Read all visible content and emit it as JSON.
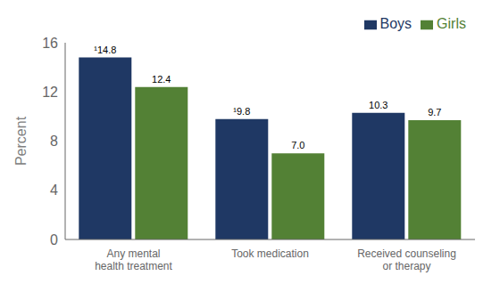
{
  "chart_data": {
    "type": "bar",
    "categories": [
      "Any mental\nhealth treatment",
      "Took medication",
      "Received counseling\nor therapy"
    ],
    "series": [
      {
        "name": "Boys",
        "color": "#1F3864",
        "values": [
          14.8,
          9.8,
          10.3
        ],
        "value_labels": [
          "¹14.8",
          "¹9.8",
          "10.3"
        ]
      },
      {
        "name": "Girls",
        "color": "#538135",
        "values": [
          12.4,
          7.0,
          9.7
        ],
        "value_labels": [
          "12.4",
          "7.0",
          "9.7"
        ]
      }
    ],
    "ylabel": "Percent",
    "ylim": [
      0,
      16
    ],
    "yticks": [
      0,
      4,
      8,
      12,
      16
    ],
    "data_labels": true,
    "legend": "upper right",
    "grid": false
  }
}
